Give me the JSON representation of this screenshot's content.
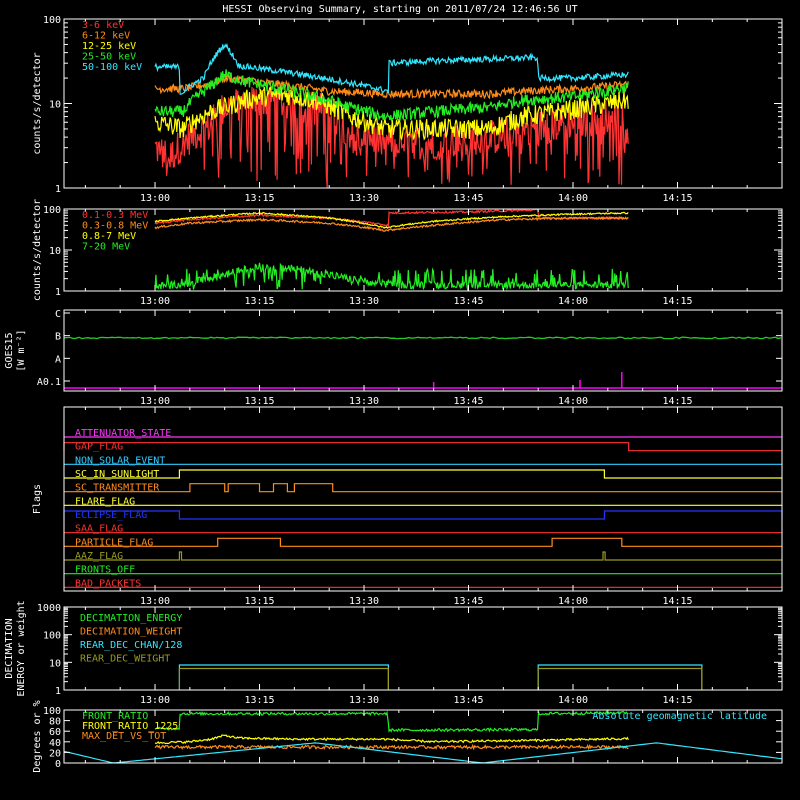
{
  "title": "HESSI Observing Summary, starting on 2011/07/24 12:46:56 UT",
  "chart_data": [
    {
      "type": "line",
      "id": "lowE",
      "ylabel": "counts/s/detector",
      "yscale": "log",
      "ylim": [
        1,
        100
      ],
      "yticks": [
        "1",
        "10",
        "100"
      ],
      "xlim": [
        "12:46:56",
        "14:30:00"
      ],
      "xticks": [
        "13:00",
        "13:15",
        "13:30",
        "13:45",
        "14:00",
        "14:15"
      ],
      "legend_position": "top-left",
      "series": [
        {
          "name": "3-6 keV",
          "color": "#ff3333",
          "noise": 0.35,
          "dropouts": true,
          "x": [
            "13:00",
            "13:02",
            "13:05",
            "13:08",
            "13:10",
            "13:15",
            "13:20",
            "13:25",
            "13:28",
            "13:33",
            "13:40",
            "13:48",
            "13:53",
            "14:00",
            "14:05",
            "14:08"
          ],
          "y": [
            3,
            2.2,
            4,
            5.5,
            9,
            11,
            10,
            8,
            4.5,
            3.5,
            3.5,
            3.8,
            5,
            6,
            7,
            8
          ]
        },
        {
          "name": "6-12 keV",
          "color": "#ff8c1a",
          "noise": 0.08,
          "x": [
            "13:00",
            "13:04",
            "13:08",
            "13:10",
            "13:15",
            "13:20",
            "13:25",
            "13:33",
            "13:40",
            "13:48",
            "13:53",
            "14:00",
            "14:05",
            "14:08"
          ],
          "y": [
            15,
            15,
            17,
            20,
            18,
            16,
            14,
            13,
            13,
            13,
            14,
            15,
            16,
            17
          ]
        },
        {
          "name": "12-25 keV",
          "color": "#ffff00",
          "noise": 0.2,
          "x": [
            "13:00",
            "13:04",
            "13:08",
            "13:10",
            "13:13",
            "13:18",
            "13:23",
            "13:28",
            "13:33",
            "13:40",
            "13:48",
            "13:53",
            "14:00",
            "14:05",
            "14:08"
          ],
          "y": [
            6,
            5,
            8,
            9,
            11,
            13,
            11,
            7,
            5,
            5,
            5,
            7,
            8.5,
            10,
            11
          ]
        },
        {
          "name": "25-50 keV",
          "color": "#22ee22",
          "noise": 0.12,
          "x": [
            "13:00",
            "13:04",
            "13:08",
            "13:10",
            "13:13",
            "13:18",
            "13:23",
            "13:28",
            "13:33",
            "13:40",
            "13:48",
            "13:53",
            "14:00",
            "14:05",
            "14:08"
          ],
          "y": [
            8,
            8,
            16,
            22,
            18,
            15,
            12,
            9,
            7,
            8,
            9,
            11,
            12,
            14,
            16
          ]
        },
        {
          "name": "50-100 keV",
          "color": "#33e6ff",
          "noise": 0.06,
          "x": [
            "13:00",
            "13:03.5",
            "13:03.6",
            "13:07",
            "13:09",
            "13:10",
            "13:12",
            "13:18",
            "13:24",
            "13:33.5",
            "13:33.6",
            "13:40",
            "13:50",
            "13:54.9",
            "13:55",
            "14:00",
            "14:08"
          ],
          "y": [
            27,
            27,
            13,
            20,
            40,
            50,
            28,
            24,
            20,
            14,
            30,
            32,
            34,
            35,
            20,
            20,
            22
          ]
        }
      ]
    },
    {
      "type": "line",
      "id": "highE",
      "ylabel": "counts/s/detector",
      "yscale": "log",
      "ylim": [
        1,
        100
      ],
      "yticks": [
        "1",
        "10",
        "100"
      ],
      "xlim": [
        "12:46:56",
        "14:30:00"
      ],
      "xticks": [
        "13:00",
        "13:15",
        "13:30",
        "13:45",
        "14:00",
        "14:15"
      ],
      "legend_position": "top-left",
      "series": [
        {
          "name": "0.1-0.3 MeV",
          "color": "#ff3333",
          "noise": 0.04,
          "x": [
            "13:00",
            "13:05",
            "13:15",
            "13:25",
            "13:33.5",
            "13:33.6",
            "13:45",
            "13:55",
            "13:55.1",
            "14:00",
            "14:08"
          ],
          "y": [
            45,
            55,
            70,
            60,
            40,
            80,
            85,
            95,
            60,
            60,
            60
          ]
        },
        {
          "name": "0.3-0.8 MeV",
          "color": "#ff8c1a",
          "noise": 0.04,
          "x": [
            "13:00",
            "13:05",
            "13:15",
            "13:25",
            "13:33",
            "13:40",
            "13:50",
            "14:00",
            "14:08"
          ],
          "y": [
            35,
            45,
            55,
            45,
            30,
            40,
            55,
            60,
            60
          ]
        },
        {
          "name": "0.8-7 MeV",
          "color": "#ffff00",
          "noise": 0.03,
          "x": [
            "13:00",
            "13:05",
            "13:15",
            "13:25",
            "13:33",
            "13:40",
            "13:50",
            "14:00",
            "14:08"
          ],
          "y": [
            50,
            60,
            80,
            60,
            35,
            50,
            65,
            75,
            80
          ]
        },
        {
          "name": "7-20 MeV",
          "color": "#22ee22",
          "noise": 0.15,
          "dropouts": true,
          "x": [
            "13:00",
            "13:05",
            "13:10",
            "13:15",
            "13:20",
            "13:25",
            "13:30",
            "13:35",
            "13:45",
            "13:55",
            "14:00",
            "14:08"
          ],
          "y": [
            1.3,
            1.5,
            2.5,
            4,
            3.5,
            2.5,
            1.6,
            1.4,
            1.4,
            1.4,
            1.4,
            1.4
          ]
        }
      ]
    },
    {
      "type": "line",
      "id": "goes",
      "ylabel": "GOES15",
      "ylabel2": "[W m⁻²]",
      "ylim_classes": [
        "A0.1",
        "A",
        "B",
        "C"
      ],
      "xlim": [
        "12:46:56",
        "14:30:00"
      ],
      "xticks": [
        "13:00",
        "13:15",
        "13:30",
        "13:45",
        "14:00",
        "14:15"
      ],
      "series": [
        {
          "name": "GOES",
          "color": "#22cc22",
          "class_level": 1.9
        },
        {
          "name": "spikes",
          "color": "#ff00ff",
          "spikes_x": [
            "13:40",
            "14:07",
            "14:01"
          ],
          "spikes_h": [
            0.15,
            0.4,
            0.2
          ]
        }
      ]
    },
    {
      "type": "table",
      "id": "flags",
      "ylabel": "Flags",
      "xlim": [
        "12:46:56",
        "14:30:00"
      ],
      "xticks": [
        "13:00",
        "13:15",
        "13:30",
        "13:45",
        "14:00",
        "14:15"
      ],
      "rows": [
        {
          "name": "ATTENUATOR_STATE",
          "color": "#ff33ff",
          "high_ranges": []
        },
        {
          "name": "GAP_FLAG",
          "color": "#ff3333",
          "high_ranges": [
            [
              "12:46:56",
              "14:08"
            ]
          ]
        },
        {
          "name": "NON_SOLAR_EVENT",
          "color": "#33ccff",
          "high_ranges": []
        },
        {
          "name": "SC_IN_SUNLIGHT",
          "color": "#ffff33",
          "high_ranges": [
            [
              "13:03.5",
              "14:04.5"
            ]
          ]
        },
        {
          "name": "SC_TRANSMITTER",
          "color": "#ff8c1a",
          "high_ranges": [
            [
              "13:05",
              "13:10"
            ],
            [
              "13:10.5",
              "13:15"
            ],
            [
              "13:17",
              "13:19"
            ],
            [
              "13:20",
              "13:25.5"
            ]
          ]
        },
        {
          "name": "FLARE_FLAG",
          "color": "#ffff33",
          "high_ranges": []
        },
        {
          "name": "ECLIPSE_FLAG",
          "color": "#2233ff",
          "high_ranges": [
            [
              "12:46:56",
              "13:03.5"
            ],
            [
              "14:04.5",
              "14:30"
            ]
          ]
        },
        {
          "name": "SAA_FLAG",
          "color": "#ff3333",
          "high_ranges": []
        },
        {
          "name": "PARTICLE_FLAG",
          "color": "#ff8c1a",
          "high_ranges": [
            [
              "13:09",
              "13:18"
            ],
            [
              "13:57",
              "14:07"
            ]
          ]
        },
        {
          "name": "AAZ_FLAG",
          "color": "#999922",
          "high_ranges": [
            [
              "13:03.5",
              "13:03.8"
            ],
            [
              "14:04.3",
              "14:04.6"
            ]
          ]
        },
        {
          "name": "FRONTS_OFF",
          "color": "#22ee22",
          "high_ranges": []
        },
        {
          "name": "BAD_PACKETS",
          "color": "#ff3333",
          "high_ranges": []
        }
      ]
    },
    {
      "type": "line",
      "id": "decim",
      "ylabel": "DECIMATION",
      "ylabel2": "ENERGY or weight",
      "yscale": "log",
      "ylim": [
        1,
        1000
      ],
      "yticks": [
        "1",
        "10",
        "100",
        "1000"
      ],
      "xlim": [
        "12:46:56",
        "14:30:00"
      ],
      "xticks": [
        "13:00",
        "13:15",
        "13:30",
        "13:45",
        "14:00",
        "14:15"
      ],
      "series": [
        {
          "name": "DECIMATION_ENERGY",
          "color": "#22ee22",
          "segments": []
        },
        {
          "name": "DECIMATION_WEIGHT",
          "color": "#ff8c1a",
          "segments": []
        },
        {
          "name": "REAR_DEC_CHAN/128",
          "color": "#33e6ff",
          "segments": [
            [
              "13:03.5",
              "13:33.5",
              8
            ],
            [
              "13:55",
              "14:18.5",
              8
            ]
          ]
        },
        {
          "name": "REAR_DEC_WEIGHT",
          "color": "#999922",
          "segments": [
            [
              "13:03.5",
              "13:33.5",
              6
            ],
            [
              "13:55",
              "14:18.5",
              6
            ]
          ]
        }
      ]
    },
    {
      "type": "line",
      "id": "ratio",
      "ylabel": "Degrees or %",
      "ylim": [
        0,
        100
      ],
      "yticks": [
        "0",
        "20",
        "40",
        "60",
        "80",
        "100"
      ],
      "xlim": [
        "12:46:56",
        "14:30:00"
      ],
      "series": [
        {
          "name": "FRONT_RATIO",
          "color": "#22ee22",
          "noise": 2.5,
          "x": [
            "13:00",
            "13:00.1",
            "13:03.5",
            "13:03.6",
            "13:33.4",
            "13:33.5",
            "13:54.9",
            "13:55",
            "14:08"
          ],
          "y": [
            65,
            65,
            65,
            93,
            93,
            62,
            63,
            93,
            95
          ]
        },
        {
          "name": "FRONT_RATIO_1225",
          "color": "#ffff00",
          "noise": 2,
          "x": [
            "13:00",
            "13:05",
            "13:08",
            "13:10",
            "13:12",
            "13:20",
            "13:33",
            "13:40",
            "13:50",
            "14:00",
            "14:08"
          ],
          "y": [
            38,
            40,
            45,
            52,
            47,
            45,
            45,
            40,
            42,
            44,
            46
          ]
        },
        {
          "name": "MAX_DET_VS_TOT",
          "color": "#ff8c1a",
          "noise": 3,
          "x": [
            "13:00",
            "13:10",
            "13:30",
            "13:50",
            "14:08"
          ],
          "y": [
            30,
            30,
            30,
            30,
            30
          ]
        },
        {
          "name": "Absolute geomagnetic latitude",
          "color": "#33e6ff",
          "x": [
            "12:46:56",
            "12:54",
            "13:23",
            "13:47",
            "14:12",
            "14:30"
          ],
          "y": [
            22,
            0,
            38,
            0,
            38,
            8
          ]
        }
      ]
    }
  ]
}
